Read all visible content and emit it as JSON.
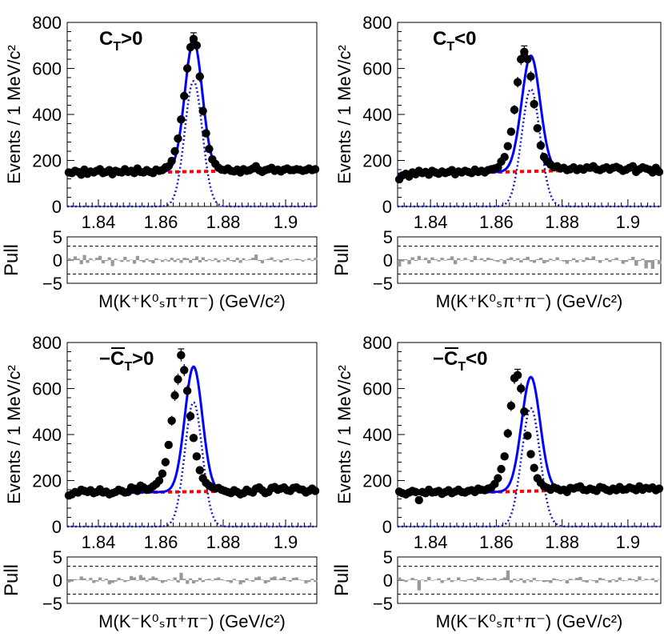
{
  "figure": {
    "mass_range": [
      1.83,
      1.91
    ],
    "peak_mean": 1.8705,
    "peak_sigma": 0.0028,
    "x_ticks": [
      "1.84",
      "1.86",
      "1.88",
      "1.9"
    ],
    "y_ticks": [
      "0",
      "200",
      "400",
      "600",
      "800"
    ],
    "pull_ticks": [
      "5",
      "0",
      "−5"
    ],
    "ylabel": "Events / 1 MeV/c²",
    "pull_label": "Pull",
    "xlabel_top": "M(K⁺K⁰ₛπ⁺π⁻) (GeV/c²)",
    "xlabel_bottom": "M(K⁻K⁰ₛπ⁺π⁻) (GeV/c²)",
    "colors": {
      "total_fit": "#0000ff",
      "signal": "#1a1acc",
      "background": "#ff0000",
      "pull_bars": "#999999",
      "data": "#000000"
    }
  },
  "chart_data": [
    {
      "type": "scatter",
      "title": "C_T>0",
      "title_main": "C",
      "title_sub": "T",
      "title_rest": ">0",
      "title_bar": false,
      "xlabel": "M(K⁺K⁰ₛπ⁺π⁻) (GeV/c²)",
      "ylabel": "Events / 1 MeV/c²",
      "xlim": [
        1.83,
        1.91
      ],
      "ylim": [
        0,
        800
      ],
      "background_line": {
        "at_x_min": 143,
        "at_x_max": 160
      },
      "signal_peak": 545,
      "total_peak": 720,
      "data_points": {
        "x": [
          1.8305,
          1.8315,
          1.8325,
          1.8335,
          1.8345,
          1.8355,
          1.8365,
          1.8375,
          1.8385,
          1.8395,
          1.8405,
          1.8415,
          1.8425,
          1.8435,
          1.8445,
          1.8455,
          1.8465,
          1.8475,
          1.8485,
          1.8495,
          1.8505,
          1.8515,
          1.8525,
          1.8535,
          1.8545,
          1.8555,
          1.8565,
          1.8575,
          1.8585,
          1.8595,
          1.8605,
          1.8615,
          1.8625,
          1.8635,
          1.8645,
          1.8655,
          1.8665,
          1.8675,
          1.8685,
          1.8695,
          1.8705,
          1.8715,
          1.8725,
          1.8735,
          1.8745,
          1.8755,
          1.8765,
          1.8775,
          1.8785,
          1.8795,
          1.8805,
          1.8815,
          1.8825,
          1.8835,
          1.8845,
          1.8855,
          1.8865,
          1.8875,
          1.8885,
          1.8895,
          1.8905,
          1.8915,
          1.8925,
          1.8935,
          1.8945,
          1.8955,
          1.8965,
          1.8975,
          1.8985,
          1.8995,
          1.9005,
          1.9015,
          1.9025,
          1.9035,
          1.9045,
          1.9055,
          1.9065,
          1.9075,
          1.9085,
          1.9095
        ],
        "y": [
          148,
          145,
          155,
          150,
          138,
          160,
          142,
          152,
          148,
          155,
          162,
          145,
          150,
          158,
          140,
          155,
          150,
          148,
          162,
          150,
          155,
          145,
          165,
          150,
          148,
          158,
          150,
          145,
          160,
          155,
          158,
          170,
          175,
          198,
          240,
          295,
          378,
          480,
          600,
          692,
          728,
          700,
          565,
          415,
          318,
          250,
          205,
          185,
          168,
          160,
          158,
          165,
          155,
          152,
          160,
          148,
          162,
          155,
          158,
          165,
          175,
          158,
          150,
          158,
          162,
          168,
          155,
          160,
          152,
          160,
          165,
          158,
          158,
          162,
          160,
          155,
          158,
          165,
          158,
          162
        ]
      },
      "error_bars_shown_at_peak": true,
      "pulls": [
        0.4,
        -0.2,
        0.8,
        0.3,
        -0.9,
        1.1,
        -0.6,
        0.4,
        -0.1,
        0.5,
        0.9,
        -0.7,
        -0.2,
        0.6,
        -1.3,
        0.3,
        -0.1,
        -0.4,
        0.7,
        -0.3,
        0.1,
        -0.8,
        0.9,
        -0.2,
        -0.5,
        0.3,
        -0.3,
        -0.7,
        0.4,
        0.1,
        -0.4,
        0.2,
        -0.3,
        0.5,
        -0.4,
        0.3,
        -0.6,
        0.5,
        0.4,
        -0.6,
        0.3,
        0.8,
        -0.5,
        0.6,
        -0.3,
        0.2,
        -0.2,
        0.4,
        -0.5,
        0.1,
        -0.3,
        0.5,
        -0.2,
        -0.4,
        0.5,
        -0.6,
        0.4,
        -0.1,
        0.2,
        0.5,
        1.2,
        -0.2,
        -0.7,
        0.1,
        0.3,
        0.6,
        -0.3,
        0.1,
        -0.5,
        0.2,
        0.4,
        -0.1,
        0.1,
        0.3,
        0.2,
        -0.3,
        0.1,
        0.4,
        -0.2,
        0.5
      ]
    },
    {
      "type": "scatter",
      "title": "C_T<0",
      "title_main": "C",
      "title_sub": "T",
      "title_rest": "<0",
      "title_bar": false,
      "xlabel": "M(K⁺K⁰ₛπ⁺π⁻) (GeV/c²)",
      "ylabel": "Events / 1 MeV/c²",
      "xlim": [
        1.83,
        1.91
      ],
      "ylim": [
        0,
        800
      ],
      "background_line": {
        "at_x_min": 140,
        "at_x_max": 165
      },
      "signal_peak": 510,
      "total_peak": 655,
      "data_points": {
        "x": [
          1.8305,
          1.8315,
          1.8325,
          1.8335,
          1.8345,
          1.8355,
          1.8365,
          1.8375,
          1.8385,
          1.8395,
          1.8405,
          1.8415,
          1.8425,
          1.8435,
          1.8445,
          1.8455,
          1.8465,
          1.8475,
          1.8485,
          1.8495,
          1.8505,
          1.8515,
          1.8525,
          1.8535,
          1.8545,
          1.8555,
          1.8565,
          1.8575,
          1.8585,
          1.8595,
          1.8605,
          1.8615,
          1.8625,
          1.8635,
          1.8645,
          1.8655,
          1.8665,
          1.8675,
          1.8685,
          1.8695,
          1.8705,
          1.8715,
          1.8725,
          1.8735,
          1.8745,
          1.8755,
          1.8765,
          1.8775,
          1.8785,
          1.8795,
          1.8805,
          1.8815,
          1.8825,
          1.8835,
          1.8845,
          1.8855,
          1.8865,
          1.8875,
          1.8885,
          1.8895,
          1.8905,
          1.8915,
          1.8925,
          1.8935,
          1.8945,
          1.8955,
          1.8965,
          1.8975,
          1.8985,
          1.8995,
          1.9005,
          1.9015,
          1.9025,
          1.9035,
          1.9045,
          1.9055,
          1.9065,
          1.9075,
          1.9085,
          1.9095
        ],
        "y": [
          118,
          135,
          142,
          130,
          148,
          140,
          155,
          145,
          150,
          138,
          155,
          148,
          142,
          152,
          145,
          150,
          158,
          140,
          152,
          148,
          155,
          150,
          145,
          160,
          150,
          155,
          148,
          158,
          162,
          165,
          170,
          195,
          215,
          262,
          325,
          420,
          540,
          640,
          672,
          640,
          565,
          445,
          340,
          265,
          215,
          195,
          182,
          170,
          175,
          165,
          168,
          158,
          162,
          170,
          158,
          165,
          160,
          170,
          168,
          175,
          162,
          158,
          165,
          170,
          160,
          168,
          172,
          165,
          155,
          160,
          168,
          175,
          150,
          162,
          170,
          165,
          160,
          148,
          168,
          150
        ]
      },
      "error_bars_shown_at_peak": true,
      "pulls": [
        -1.4,
        -0.3,
        0.2,
        -0.9,
        0.6,
        -0.2,
        0.9,
        0.1,
        0.5,
        -0.7,
        0.6,
        0.2,
        -0.3,
        0.5,
        -0.1,
        0.3,
        0.8,
        -0.9,
        0.4,
        -0.1,
        0.5,
        0.1,
        -0.4,
        0.9,
        0.1,
        0.4,
        -0.3,
        0.5,
        0.3,
        -0.2,
        -0.4,
        0.2,
        -0.8,
        0.3,
        0.6,
        -0.2,
        0.4,
        -0.5,
        0.3,
        0.7,
        -0.3,
        -0.6,
        0.2,
        0.5,
        -0.7,
        -0.4,
        0.3,
        -0.2,
        0.6,
        -0.1,
        -0.3,
        -0.8,
        -0.2,
        0.4,
        -0.5,
        0.1,
        -0.4,
        0.6,
        0.3,
        0.8,
        -0.1,
        -0.6,
        -0.1,
        0.4,
        -0.4,
        0.2,
        0.5,
        -0.1,
        -0.8,
        -0.4,
        0.2,
        0.7,
        -1.2,
        -0.2,
        0.3,
        -1.8,
        -0.5,
        -1.9,
        0.1,
        -0.9
      ]
    },
    {
      "type": "scatter",
      "title": "−C̄_T>0",
      "title_main": "−C",
      "title_sub": "T",
      "title_rest": ">0",
      "title_bar": true,
      "xlabel": "M(K⁻K⁰ₛπ⁺π⁻) (GeV/c²)",
      "ylabel": "Events / 1 MeV/c²",
      "xlim": [
        1.83,
        1.91
      ],
      "ylim": [
        0,
        800
      ],
      "background_line": {
        "at_x_min": 145,
        "at_x_max": 158
      },
      "signal_peak": 540,
      "total_peak": 695,
      "data_points": {
        "x": [
          1.8305,
          1.8315,
          1.8325,
          1.8335,
          1.8345,
          1.8355,
          1.8365,
          1.8375,
          1.8385,
          1.8395,
          1.8405,
          1.8415,
          1.8425,
          1.8435,
          1.8445,
          1.8455,
          1.8465,
          1.8475,
          1.8485,
          1.8495,
          1.8505,
          1.8515,
          1.8525,
          1.8535,
          1.8545,
          1.8555,
          1.8565,
          1.8575,
          1.8585,
          1.8595,
          1.8605,
          1.8615,
          1.8625,
          1.8635,
          1.8645,
          1.8655,
          1.8665,
          1.8675,
          1.8685,
          1.8695,
          1.8705,
          1.8715,
          1.8725,
          1.8735,
          1.8745,
          1.8755,
          1.8765,
          1.8775,
          1.8785,
          1.8795,
          1.8805,
          1.8815,
          1.8825,
          1.8835,
          1.8845,
          1.8855,
          1.8865,
          1.8875,
          1.8885,
          1.8895,
          1.8905,
          1.8915,
          1.8925,
          1.8935,
          1.8945,
          1.8955,
          1.8965,
          1.8975,
          1.8985,
          1.8995,
          1.9005,
          1.9015,
          1.9025,
          1.9035,
          1.9045,
          1.9055,
          1.9065,
          1.9075,
          1.9085,
          1.9095
        ],
        "y": [
          135,
          140,
          150,
          148,
          160,
          155,
          150,
          158,
          145,
          150,
          162,
          148,
          152,
          140,
          145,
          150,
          160,
          155,
          148,
          150,
          170,
          165,
          155,
          178,
          170,
          160,
          165,
          175,
          185,
          200,
          230,
          280,
          355,
          460,
          570,
          640,
          745,
          680,
          590,
          480,
          385,
          305,
          245,
          210,
          190,
          178,
          170,
          165,
          168,
          160,
          155,
          150,
          145,
          158,
          150,
          140,
          145,
          160,
          152,
          148,
          165,
          170,
          158,
          145,
          150,
          168,
          172,
          160,
          165,
          170,
          158,
          155,
          168,
          170,
          162,
          160,
          148,
          155,
          165,
          155
        ]
      },
      "error_bars_shown_at_peak": true,
      "pulls": [
        -0.5,
        -0.3,
        0.2,
        0.1,
        0.8,
        0.4,
        -0.1,
        0.5,
        -0.6,
        -0.3,
        0.6,
        -0.2,
        0.3,
        -0.9,
        -0.6,
        -0.3,
        0.5,
        0.2,
        -0.4,
        -0.2,
        0.9,
        0.6,
        -0.1,
        1.1,
        0.6,
        -0.3,
        0.4,
        0.8,
        0.5,
        -0.2,
        -0.6,
        -0.3,
        0.2,
        -0.1,
        0.6,
        -0.5,
        1.6,
        0.3,
        -0.8,
        0.4,
        -0.7,
        -0.3,
        0.5,
        -0.4,
        0.2,
        0.3,
        -0.1,
        0.4,
        0.6,
        0.2,
        -0.1,
        -0.3,
        -0.6,
        0.3,
        -0.1,
        -0.9,
        -0.5,
        0.4,
        -0.1,
        -0.3,
        0.6,
        0.8,
        0.1,
        -0.7,
        -0.4,
        0.6,
        0.8,
        0.1,
        0.4,
        0.7,
        -0.1,
        -0.3,
        0.5,
        0.6,
        0.1,
        -0.1,
        -0.7,
        -0.4,
        0.3,
        -0.4
      ]
    },
    {
      "type": "scatter",
      "title": "−C̄_T<0",
      "title_main": "−C",
      "title_sub": "T",
      "title_rest": "<0",
      "title_bar": true,
      "xlabel": "M(K⁻K⁰ₛπ⁺π⁻) (GeV/c²)",
      "ylabel": "Events / 1 MeV/c²",
      "xlim": [
        1.83,
        1.91
      ],
      "ylim": [
        0,
        800
      ],
      "background_line": {
        "at_x_min": 140,
        "at_x_max": 168
      },
      "signal_peak": 515,
      "total_peak": 650,
      "data_points": {
        "x": [
          1.8305,
          1.8315,
          1.8325,
          1.8335,
          1.8345,
          1.8355,
          1.8365,
          1.8375,
          1.8385,
          1.8395,
          1.8405,
          1.8415,
          1.8425,
          1.8435,
          1.8445,
          1.8455,
          1.8465,
          1.8475,
          1.8485,
          1.8495,
          1.8505,
          1.8515,
          1.8525,
          1.8535,
          1.8545,
          1.8555,
          1.8565,
          1.8575,
          1.8585,
          1.8595,
          1.8605,
          1.8615,
          1.8625,
          1.8635,
          1.8645,
          1.8655,
          1.8665,
          1.8675,
          1.8685,
          1.8695,
          1.8705,
          1.8715,
          1.8725,
          1.8735,
          1.8745,
          1.8755,
          1.8765,
          1.8775,
          1.8785,
          1.8795,
          1.8805,
          1.8815,
          1.8825,
          1.8835,
          1.8845,
          1.8855,
          1.8865,
          1.8875,
          1.8885,
          1.8895,
          1.8905,
          1.8915,
          1.8925,
          1.8935,
          1.8945,
          1.8955,
          1.8965,
          1.8975,
          1.8985,
          1.8995,
          1.9005,
          1.9015,
          1.9025,
          1.9035,
          1.9045,
          1.9055,
          1.9065,
          1.9075,
          1.9085,
          1.9095
        ],
        "y": [
          152,
          145,
          140,
          148,
          155,
          150,
          115,
          150,
          145,
          160,
          148,
          150,
          155,
          142,
          150,
          158,
          145,
          152,
          160,
          150,
          148,
          155,
          158,
          150,
          165,
          160,
          158,
          165,
          170,
          185,
          210,
          250,
          305,
          405,
          525,
          645,
          658,
          600,
          500,
          395,
          315,
          255,
          210,
          190,
          175,
          168,
          160,
          170,
          165,
          158,
          160,
          150,
          168,
          165,
          170,
          175,
          160,
          158,
          165,
          160,
          155,
          172,
          168,
          160,
          155,
          165,
          158,
          172,
          160,
          162,
          170,
          165,
          158,
          175,
          160,
          168,
          165,
          170,
          158,
          165
        ]
      },
      "error_bars_shown_at_peak": true,
      "pulls": [
        0.6,
        0.2,
        -0.4,
        0.1,
        0.5,
        0.2,
        -2.2,
        0.1,
        -0.3,
        0.7,
        -0.1,
        0.1,
        0.4,
        -0.6,
        -0.1,
        0.5,
        -0.4,
        -0.1,
        0.6,
        -0.2,
        -0.3,
        0.2,
        0.3,
        -0.3,
        0.7,
        0.4,
        -0.1,
        0.3,
        0.2,
        0.5,
        -0.1,
        0.3,
        0.6,
        2.1,
        -0.5,
        0.3,
        -0.2,
        0.4,
        -0.6,
        0.2,
        -0.4,
        0.5,
        -0.2,
        -0.1,
        -0.4,
        -0.3,
        -0.6,
        0.4,
        0.2,
        -0.2,
        0.1,
        -0.7,
        0.3,
        0.1,
        0.5,
        0.7,
        -0.3,
        -0.5,
        0.1,
        -0.2,
        -0.6,
        0.5,
        0.3,
        -0.1,
        -0.5,
        0.2,
        -0.4,
        0.6,
        -0.2,
        -0.1,
        0.4,
        0.2,
        -0.3,
        0.8,
        -0.1,
        0.3,
        0.1,
        0.4,
        -0.4,
        0.1
      ]
    }
  ]
}
